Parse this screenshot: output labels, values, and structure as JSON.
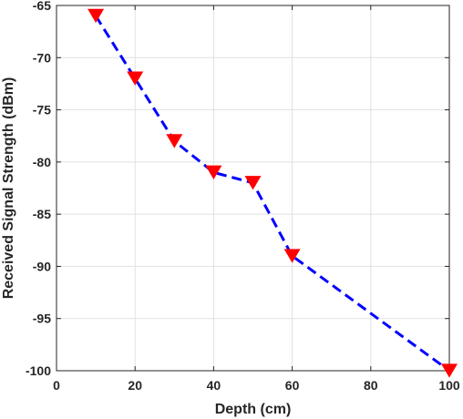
{
  "chart_data": {
    "type": "line",
    "xlabel": "Depth (cm)",
    "ylabel": "Received Signal Strength (dBm)",
    "xlim": [
      0,
      100
    ],
    "ylim": [
      -100,
      -65
    ],
    "xticks": [
      0,
      20,
      40,
      60,
      80,
      100
    ],
    "yticks": [
      -65,
      -70,
      -75,
      -80,
      -85,
      -90,
      -95,
      -100
    ],
    "grid": true,
    "series": [
      {
        "x": [
          10,
          20,
          30,
          40,
          50,
          60,
          100
        ],
        "y": [
          -66,
          -72,
          -78,
          -81,
          -82,
          -89,
          -100
        ],
        "line_style": "dashed",
        "line_color": "#0000ff",
        "marker": "triangle-down",
        "marker_color": "#ff0000"
      }
    ]
  }
}
